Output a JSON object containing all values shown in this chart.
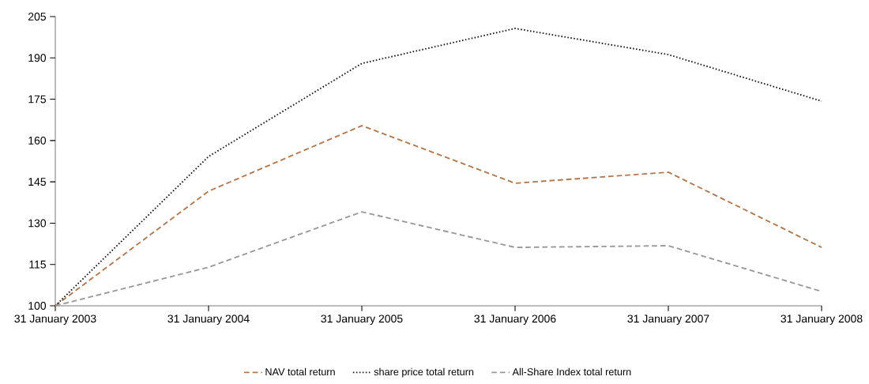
{
  "chart_data": {
    "type": "line",
    "categories": [
      "31 January 2003",
      "31 January 2004",
      "31 January 2005",
      "31 January 2006",
      "31 January 2007",
      "31 January 2008"
    ],
    "series": [
      {
        "name": "NAV total return",
        "color": "#b07850",
        "line_style": "dashed",
        "values": [
          100,
          141.6,
          165.4,
          144.5,
          148.5,
          121.2
        ]
      },
      {
        "name": "share price total return",
        "color": "#1a1a1a",
        "line_style": "dotted",
        "values": [
          100,
          154.2,
          188,
          200.7,
          191.2,
          174.3
        ]
      },
      {
        "name": "All-Share Index total return",
        "color": "#999999",
        "line_style": "dashed",
        "values": [
          100,
          114,
          134.1,
          121.2,
          121.8,
          105.2
        ]
      }
    ],
    "ylim": [
      100,
      205
    ],
    "yticks": [
      100,
      115,
      130,
      145,
      160,
      175,
      190,
      205
    ],
    "grid": false,
    "legend": "bottom",
    "marker": "none"
  }
}
